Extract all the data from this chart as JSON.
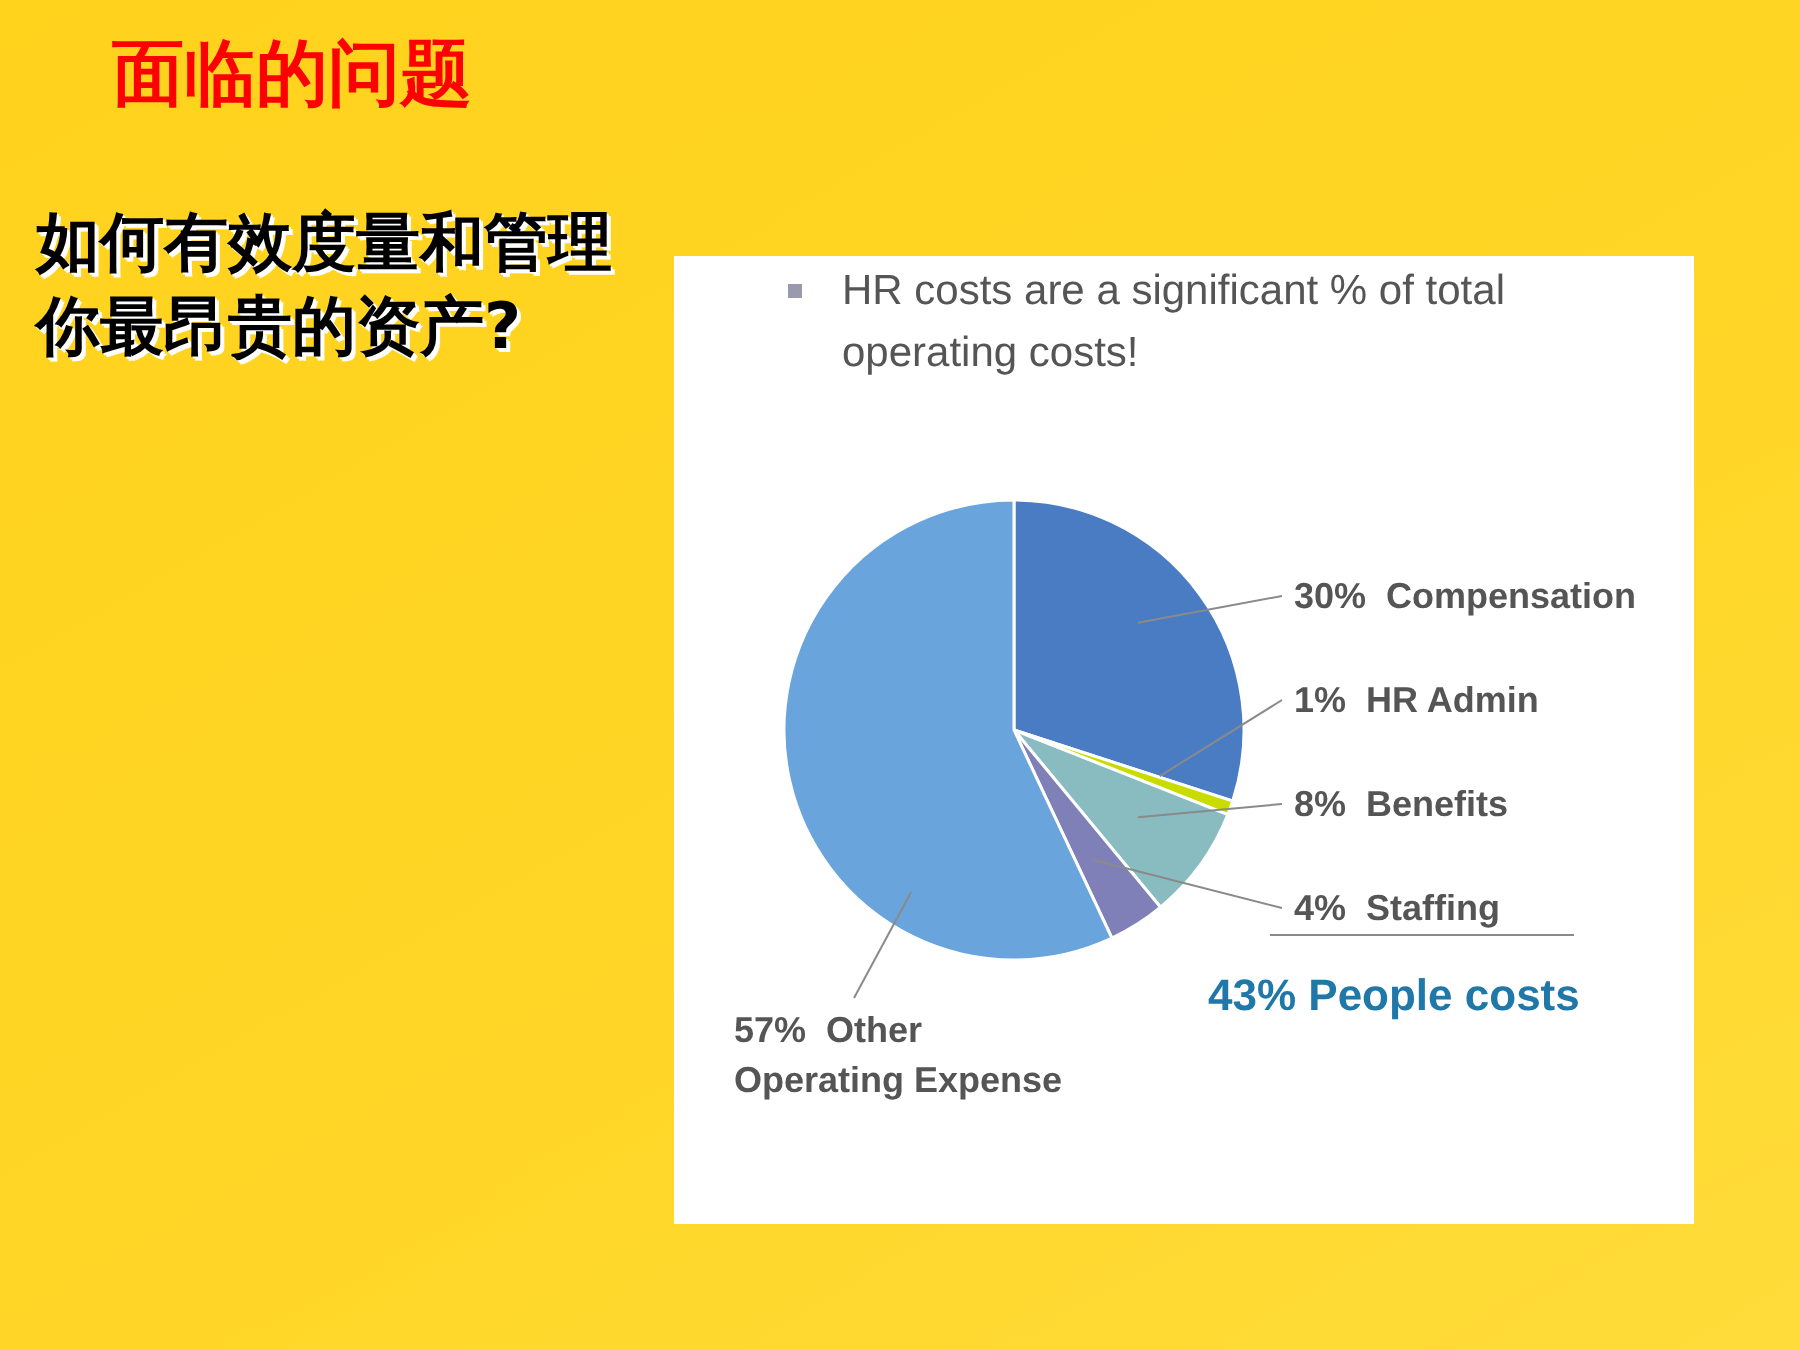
{
  "chart_data": {
    "type": "pie",
    "title": "面临的问题",
    "subtitle": "如何有效度量和管理你最昂贵的资产?",
    "categories": [
      "Compensation",
      "HR Admin",
      "Benefits",
      "Staffing",
      "Other Operating Expense"
    ],
    "values": [
      30,
      1,
      8,
      4,
      57
    ],
    "colors": [
      "#4a7cc4",
      "#c8dc00",
      "#88bcc0",
      "#8080b8",
      "#6aa4dc"
    ],
    "value_labels": [
      "30%",
      "1%",
      "8%",
      "4%",
      "57%"
    ],
    "annotations": [
      "HR costs are a significant % of total operating costs!",
      "43% People costs"
    ]
  }
}
